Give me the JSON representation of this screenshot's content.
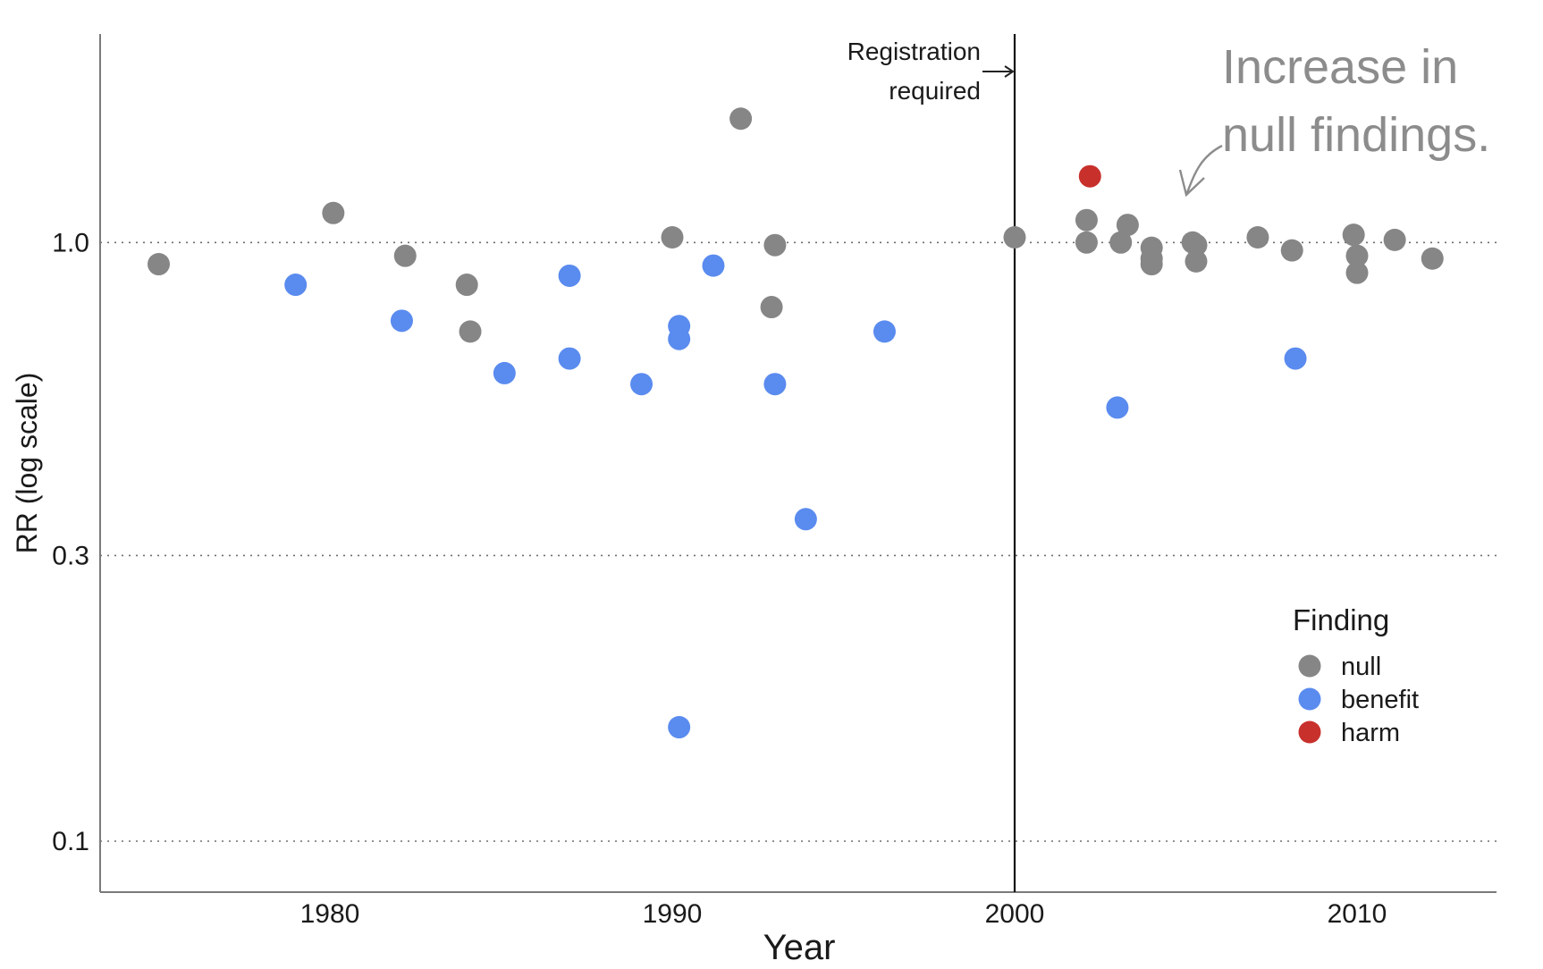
{
  "chart_data": {
    "type": "scatter",
    "xlabel": "Year",
    "ylabel": "RR (log scale)",
    "xlim": [
      1973.2,
      2014.0
    ],
    "ylim": [
      0.0822,
      2.23
    ],
    "y_scale": "log",
    "x_ticks": [
      {
        "value": 1980,
        "label": "1980"
      },
      {
        "value": 1990,
        "label": "1990"
      },
      {
        "value": 2000,
        "label": "2000"
      },
      {
        "value": 2010,
        "label": "2010"
      }
    ],
    "y_ticks": [
      {
        "value": 0.1,
        "label": "0.1"
      },
      {
        "value": 0.3,
        "label": "0.3"
      },
      {
        "value": 1.0,
        "label": "1.0"
      }
    ],
    "grid": "horizontal dotted at y ticks",
    "colors": {
      "null": "#868686",
      "benefit": "#5a8bef",
      "harm": "#c8302c"
    },
    "legend": {
      "title": "Finding",
      "position": "right",
      "entries": [
        {
          "key": "null",
          "label": "null"
        },
        {
          "key": "benefit",
          "label": "benefit"
        },
        {
          "key": "harm",
          "label": "harm"
        }
      ]
    },
    "vline": {
      "x": 2000,
      "label_line1": "Registration",
      "label_line2": "required"
    },
    "annotation": {
      "line1": "Increase in",
      "line2": "null findings."
    },
    "series": [
      {
        "key": "null",
        "points": [
          {
            "x": 1975.0,
            "y": 0.92
          },
          {
            "x": 1980.1,
            "y": 1.12
          },
          {
            "x": 1982.2,
            "y": 0.95
          },
          {
            "x": 1984.0,
            "y": 0.85
          },
          {
            "x": 1984.1,
            "y": 0.71
          },
          {
            "x": 1990.0,
            "y": 1.02
          },
          {
            "x": 1992.0,
            "y": 1.61
          },
          {
            "x": 1993.0,
            "y": 0.99
          },
          {
            "x": 1992.9,
            "y": 0.78
          },
          {
            "x": 2000.0,
            "y": 1.02
          },
          {
            "x": 2002.1,
            "y": 1.09
          },
          {
            "x": 2002.1,
            "y": 1.0
          },
          {
            "x": 2003.1,
            "y": 1.0
          },
          {
            "x": 2003.3,
            "y": 1.07
          },
          {
            "x": 2004.0,
            "y": 0.98
          },
          {
            "x": 2004.0,
            "y": 0.94
          },
          {
            "x": 2004.0,
            "y": 0.92
          },
          {
            "x": 2005.2,
            "y": 1.0
          },
          {
            "x": 2005.3,
            "y": 0.99
          },
          {
            "x": 2005.3,
            "y": 0.93
          },
          {
            "x": 2007.1,
            "y": 1.02
          },
          {
            "x": 2008.1,
            "y": 0.97
          },
          {
            "x": 2009.9,
            "y": 1.03
          },
          {
            "x": 2010.0,
            "y": 0.95
          },
          {
            "x": 2010.0,
            "y": 0.89
          },
          {
            "x": 2011.1,
            "y": 1.01
          },
          {
            "x": 2012.2,
            "y": 0.94
          }
        ]
      },
      {
        "key": "benefit",
        "points": [
          {
            "x": 1979.0,
            "y": 0.85
          },
          {
            "x": 1982.1,
            "y": 0.74
          },
          {
            "x": 1985.1,
            "y": 0.605
          },
          {
            "x": 1987.0,
            "y": 0.88
          },
          {
            "x": 1987.0,
            "y": 0.64
          },
          {
            "x": 1989.1,
            "y": 0.58
          },
          {
            "x": 1990.2,
            "y": 0.155
          },
          {
            "x": 1990.2,
            "y": 0.725
          },
          {
            "x": 1990.2,
            "y": 0.69
          },
          {
            "x": 1991.2,
            "y": 0.915
          },
          {
            "x": 1993.0,
            "y": 0.58
          },
          {
            "x": 1993.9,
            "y": 0.345
          },
          {
            "x": 1996.2,
            "y": 0.71
          },
          {
            "x": 2003.0,
            "y": 0.53
          },
          {
            "x": 2008.2,
            "y": 0.64
          }
        ]
      },
      {
        "key": "harm",
        "points": [
          {
            "x": 2002.2,
            "y": 1.29
          }
        ]
      }
    ]
  }
}
